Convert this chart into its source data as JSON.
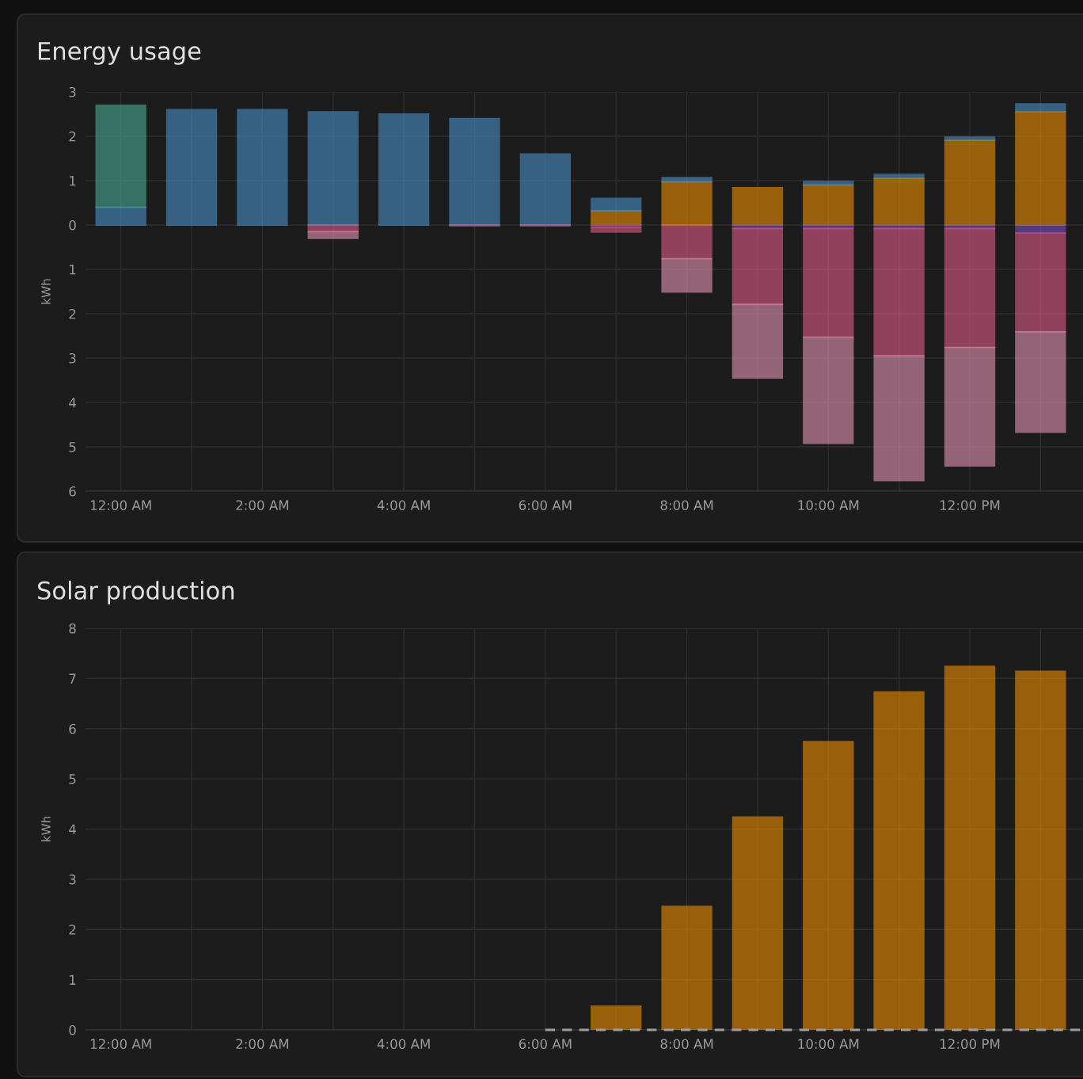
{
  "chart_data": [
    {
      "type": "bar",
      "title": "Energy usage",
      "ylabel": "kWh",
      "stacked": true,
      "grid": true,
      "legend": false,
      "x": [
        0,
        1,
        2,
        3,
        4,
        5,
        6,
        7,
        8,
        9,
        10,
        11,
        12,
        13
      ],
      "xlim": [
        -0.5,
        13.6
      ],
      "xticks": [
        {
          "value": 0,
          "label": "12:00 AM"
        },
        {
          "value": 1,
          "label": null
        },
        {
          "value": 2,
          "label": "2:00 AM"
        },
        {
          "value": 3,
          "label": null
        },
        {
          "value": 4,
          "label": "4:00 AM"
        },
        {
          "value": 5,
          "label": null
        },
        {
          "value": 6,
          "label": "6:00 AM"
        },
        {
          "value": 7,
          "label": null
        },
        {
          "value": 8,
          "label": "8:00 AM"
        },
        {
          "value": 9,
          "label": null
        },
        {
          "value": 10,
          "label": "10:00 AM"
        },
        {
          "value": 11,
          "label": null
        },
        {
          "value": 12,
          "label": "12:00 PM"
        },
        {
          "value": 13,
          "label": null
        }
      ],
      "ylim": [
        -6,
        3
      ],
      "yticks": [
        {
          "value": -6,
          "label": "6"
        },
        {
          "value": -5,
          "label": "5"
        },
        {
          "value": -4,
          "label": "4"
        },
        {
          "value": -3,
          "label": "3"
        },
        {
          "value": -2,
          "label": "2"
        },
        {
          "value": -1,
          "label": "1"
        },
        0,
        1,
        2,
        3
      ],
      "series": [
        {
          "color": "#ff9800",
          "values": [
            null,
            null,
            null,
            null,
            null,
            null,
            null,
            0.32,
            0.97,
            0.84,
            0.9,
            1.05,
            1.91,
            2.55
          ]
        },
        {
          "color": "#4c9bd6",
          "values": [
            0.4,
            2.6,
            2.6,
            2.55,
            2.5,
            2.4,
            1.6,
            0.28,
            0.1,
            null,
            0.08,
            0.09,
            0.07,
            0.18
          ]
        },
        {
          "color": "#4cb8a0",
          "values": [
            2.3,
            null,
            null,
            null,
            null,
            null,
            null,
            null,
            null,
            null,
            null,
            null,
            null,
            null
          ]
        },
        {
          "color": "#8353d1",
          "values": [
            null,
            null,
            null,
            null,
            null,
            null,
            null,
            -0.05,
            null,
            -0.08,
            -0.08,
            -0.08,
            -0.08,
            -0.18
          ]
        },
        {
          "color": "#f06292",
          "values": [
            null,
            null,
            null,
            -0.15,
            null,
            -0.02,
            -0.02,
            -0.11,
            -0.76,
            -1.71,
            -2.45,
            -2.87,
            -2.68,
            -2.23
          ]
        },
        {
          "color": "#f4a0c0",
          "values": [
            null,
            null,
            null,
            -0.15,
            null,
            null,
            null,
            null,
            -0.75,
            -1.66,
            -2.39,
            -2.81,
            -2.67,
            -2.26
          ]
        }
      ]
    },
    {
      "type": "bar",
      "title": "Solar production",
      "ylabel": "kWh",
      "grid": true,
      "legend": false,
      "xlim": [
        -0.5,
        13.6
      ],
      "xticks": [
        {
          "value": 0,
          "label": "12:00 AM"
        },
        {
          "value": 1,
          "label": null
        },
        {
          "value": 2,
          "label": "2:00 AM"
        },
        {
          "value": 3,
          "label": null
        },
        {
          "value": 4,
          "label": "4:00 AM"
        },
        {
          "value": 5,
          "label": null
        },
        {
          "value": 6,
          "label": "6:00 AM"
        },
        {
          "value": 7,
          "label": null
        },
        {
          "value": 8,
          "label": "8:00 AM"
        },
        {
          "value": 9,
          "label": null
        },
        {
          "value": 10,
          "label": "10:00 AM"
        },
        {
          "value": 11,
          "label": null
        },
        {
          "value": 12,
          "label": "12:00 PM"
        },
        {
          "value": 13,
          "label": null
        }
      ],
      "ylim": [
        0,
        8
      ],
      "yticks": [
        0,
        1,
        2,
        3,
        4,
        5,
        6,
        7,
        8
      ],
      "series": [
        {
          "color": "#ff9800",
          "x": [
            7,
            8,
            9,
            10,
            11,
            12,
            13
          ],
          "values": [
            0.47,
            2.46,
            4.24,
            5.74,
            6.73,
            7.24,
            7.14
          ]
        },
        {
          "type": "line",
          "line_style": "dashed",
          "marker": "none",
          "color": "#9e9e9e",
          "x": [
            6,
            7,
            8,
            9,
            10,
            11,
            12,
            13,
            13.6
          ],
          "values": [
            0,
            0,
            0,
            0,
            0,
            0,
            0,
            0,
            0
          ]
        }
      ]
    }
  ]
}
